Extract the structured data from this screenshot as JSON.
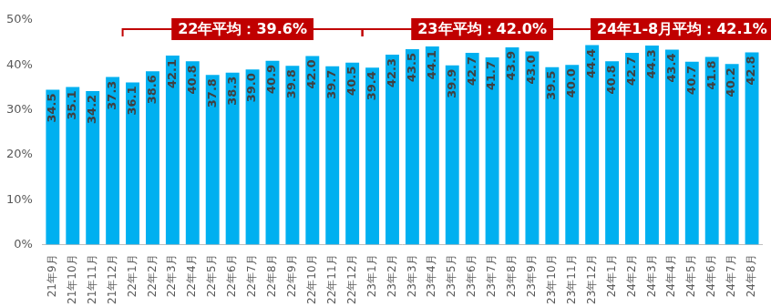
{
  "chart_data": {
    "type": "bar",
    "categories": [
      "21年9月",
      "21年10月",
      "21年11月",
      "21年12月",
      "22年1月",
      "22年2月",
      "22年3月",
      "22年4月",
      "22年5月",
      "22年6月",
      "22年7月",
      "22年8月",
      "22年9月",
      "22年10月",
      "22年11月",
      "22年12月",
      "23年1月",
      "23年2月",
      "23年3月",
      "23年4月",
      "23年5月",
      "23年6月",
      "23年7月",
      "23年8月",
      "23年9月",
      "23年10月",
      "23年11月",
      "23年12月",
      "24年1月",
      "24年2月",
      "24年3月",
      "24年4月",
      "24年5月",
      "24年6月",
      "24年7月",
      "24年8月"
    ],
    "values": [
      34.5,
      35.1,
      34.2,
      37.3,
      36.1,
      38.6,
      42.1,
      40.8,
      37.8,
      38.3,
      39.0,
      40.9,
      39.8,
      42.0,
      39.7,
      40.5,
      39.4,
      42.3,
      43.5,
      44.1,
      39.9,
      42.7,
      41.7,
      43.9,
      43.0,
      39.5,
      40.0,
      44.4,
      40.8,
      42.7,
      44.3,
      43.4,
      40.7,
      41.8,
      40.2,
      42.8
    ],
    "value_labels": [
      "34.5",
      "35.1",
      "34.2",
      "37.3",
      "36.1",
      "38.6",
      "42.1",
      "40.8",
      "37.8",
      "38.3",
      "39.0",
      "40.9",
      "39.8",
      "42.0",
      "39.7",
      "40.5",
      "39.4",
      "42.3",
      "43.5",
      "44.1",
      "39.9",
      "42.7",
      "41.7",
      "43.9",
      "43.0",
      "39.5",
      "40.0",
      "44.4",
      "40.8",
      "42.7",
      "44.3",
      "43.4",
      "40.7",
      "41.8",
      "40.2",
      "42.8"
    ],
    "color": "#00b0f0",
    "data_labels": true,
    "grid": false,
    "ylim": [
      0,
      50
    ],
    "yticks": [
      {
        "value": 0,
        "label": "0%"
      },
      {
        "value": 10,
        "label": "10%"
      },
      {
        "value": 20,
        "label": "20%"
      },
      {
        "value": 30,
        "label": "30%"
      },
      {
        "value": 40,
        "label": "40%"
      },
      {
        "value": 50,
        "label": "50%"
      }
    ],
    "annotations": [
      {
        "text": "22年平均：39.6%",
        "from": "22年1月",
        "to": "22年12月"
      },
      {
        "text": "23年平均：42.0%",
        "from": "23年1月",
        "to": "23年12月"
      },
      {
        "text": "24年1-8月平均：42.1%",
        "from": "24年1月",
        "to": "24年8月"
      }
    ]
  }
}
